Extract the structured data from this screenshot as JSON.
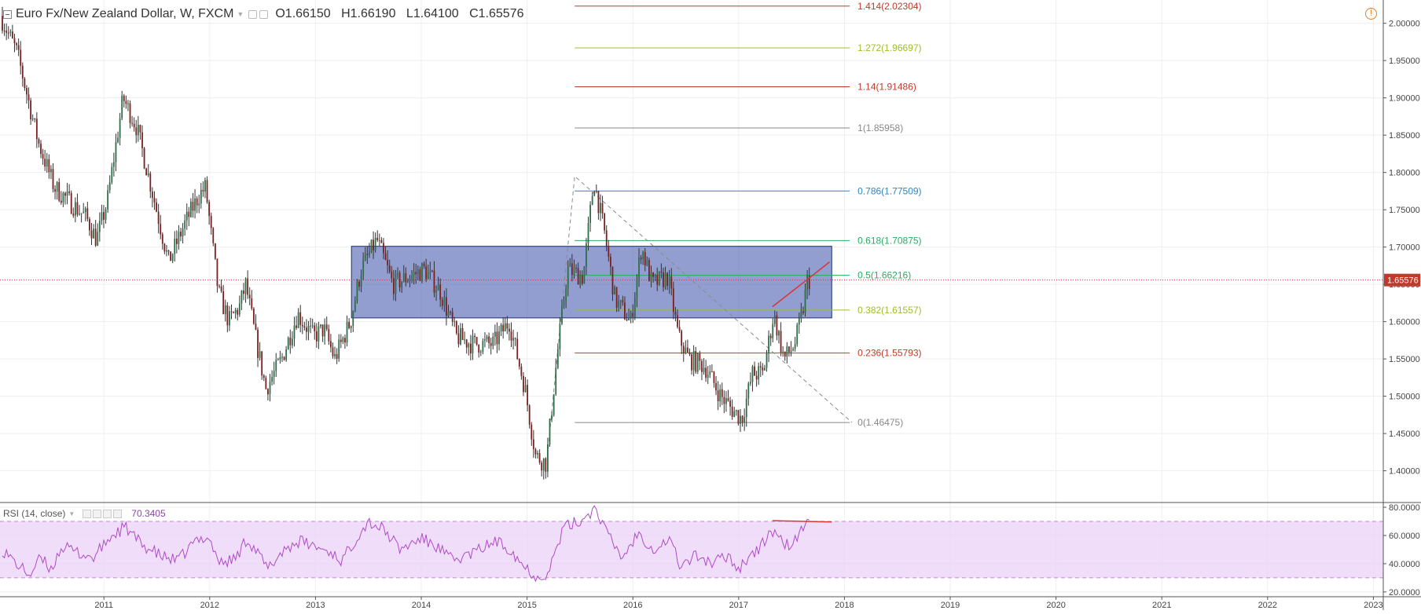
{
  "header": {
    "symbol": "Euro Fx/New Zealand Dollar, W, FXCM",
    "open": "O1.66150",
    "high": "H1.66190",
    "low": "L1.64100",
    "close": "C1.65576"
  },
  "indicator": {
    "label": "RSI (14, close)",
    "value": "70.3405"
  },
  "price_tag": "1.65576",
  "colors": {
    "bull": "#2c6e49",
    "bear": "#7b1f1f",
    "box_fill": "#4a5db0",
    "rsi_line": "#b04bc8",
    "rsi_band": "#ead1f7",
    "price_tag": "#c0392b",
    "trend": "#d93636"
  },
  "chart_data": [
    {
      "type": "candlestick",
      "title": "Euro Fx/New Zealand Dollar, W, FXCM",
      "x_ticks": [
        "2011",
        "2012",
        "2013",
        "2014",
        "2015",
        "2016",
        "2017",
        "2018",
        "2019",
        "2020",
        "2021",
        "2022",
        "2023"
      ],
      "y_ticks": [
        "2.00000",
        "1.95000",
        "1.90000",
        "1.85000",
        "1.80000",
        "1.75000",
        "1.70000",
        "1.65000",
        "1.60000",
        "1.55000",
        "1.50000",
        "1.45000",
        "1.40000"
      ],
      "xlim": [
        2010.04,
        2023.05
      ],
      "ylim": [
        1.3575,
        2.0312
      ],
      "grid": true,
      "price_anchors": [
        [
          2010.04,
          2.01
        ],
        [
          2010.2,
          1.96
        ],
        [
          2010.4,
          1.84
        ],
        [
          2010.55,
          1.78
        ],
        [
          2010.7,
          1.76
        ],
        [
          2010.85,
          1.74
        ],
        [
          2010.95,
          1.71
        ],
        [
          2011.05,
          1.76
        ],
        [
          2011.2,
          1.9
        ],
        [
          2011.33,
          1.86
        ],
        [
          2011.5,
          1.76
        ],
        [
          2011.63,
          1.68
        ],
        [
          2011.78,
          1.73
        ],
        [
          2011.92,
          1.77
        ],
        [
          2011.98,
          1.78
        ],
        [
          2012.03,
          1.72
        ],
        [
          2012.1,
          1.64
        ],
        [
          2012.2,
          1.6
        ],
        [
          2012.3,
          1.62
        ],
        [
          2012.36,
          1.65
        ],
        [
          2012.45,
          1.58
        ],
        [
          2012.55,
          1.51
        ],
        [
          2012.7,
          1.55
        ],
        [
          2012.85,
          1.61
        ],
        [
          2013.0,
          1.58
        ],
        [
          2013.1,
          1.59
        ],
        [
          2013.2,
          1.55
        ],
        [
          2013.35,
          1.6
        ],
        [
          2013.45,
          1.67
        ],
        [
          2013.6,
          1.71
        ],
        [
          2013.75,
          1.65
        ],
        [
          2013.9,
          1.66
        ],
        [
          2014.05,
          1.67
        ],
        [
          2014.2,
          1.64
        ],
        [
          2014.35,
          1.58
        ],
        [
          2014.5,
          1.57
        ],
        [
          2014.7,
          1.57
        ],
        [
          2014.85,
          1.6
        ],
        [
          2015.0,
          1.51
        ],
        [
          2015.1,
          1.42
        ],
        [
          2015.2,
          1.41
        ],
        [
          2015.3,
          1.55
        ],
        [
          2015.4,
          1.67
        ],
        [
          2015.55,
          1.66
        ],
        [
          2015.65,
          1.79
        ],
        [
          2015.75,
          1.72
        ],
        [
          2015.85,
          1.63
        ],
        [
          2016.0,
          1.6
        ],
        [
          2016.1,
          1.7
        ],
        [
          2016.2,
          1.65
        ],
        [
          2016.35,
          1.66
        ],
        [
          2016.45,
          1.58
        ],
        [
          2016.55,
          1.55
        ],
        [
          2016.7,
          1.54
        ],
        [
          2016.85,
          1.5
        ],
        [
          2016.97,
          1.48
        ],
        [
          2017.05,
          1.47
        ],
        [
          2017.15,
          1.53
        ],
        [
          2017.25,
          1.53
        ],
        [
          2017.35,
          1.61
        ],
        [
          2017.45,
          1.55
        ],
        [
          2017.55,
          1.57
        ],
        [
          2017.62,
          1.61
        ],
        [
          2017.67,
          1.6558
        ]
      ]
    },
    {
      "type": "fibonacci_retracement",
      "x_start": 2015.45,
      "x_end": 2018.05,
      "levels": [
        {
          "label": "1.414(2.02304)",
          "value": 2.02304,
          "color": "#c0392b"
        },
        {
          "label": "1.272(1.96697)",
          "value": 1.96697,
          "color": "#9dbe2a"
        },
        {
          "label": "1.14(1.91486)",
          "value": 1.91486,
          "color": "#c0392b"
        },
        {
          "label": "1(1.85958)",
          "value": 1.85958,
          "color": "#888888"
        },
        {
          "label": "0.786(1.77509)",
          "value": 1.77509,
          "color": "#2e86c1"
        },
        {
          "label": "0.618(1.70875)",
          "value": 1.70875,
          "color": "#27ae60"
        },
        {
          "label": "0.5(1.66216)",
          "value": 1.66216,
          "color": "#27ae60"
        },
        {
          "label": "0.382(1.61557)",
          "value": 1.61557,
          "color": "#9dbe2a"
        },
        {
          "label": "0.236(1.55793)",
          "value": 1.55793,
          "color": "#c0392b"
        },
        {
          "label": "0(1.46475)",
          "value": 1.46475,
          "color": "#888888"
        }
      ],
      "trend_dashed": [
        [
          2015.2,
          1.43
        ],
        [
          2015.45,
          1.795
        ],
        [
          2018.07,
          1.465
        ]
      ]
    },
    {
      "type": "rectangle",
      "x": [
        2013.34,
        2017.88
      ],
      "y": [
        1.605,
        1.701
      ]
    },
    {
      "type": "trendline",
      "points": [
        [
          2017.32,
          1.62
        ],
        [
          2017.86,
          1.68
        ]
      ]
    },
    {
      "type": "line",
      "name": "RSI (14, close)",
      "y_ticks": [
        "80.0000",
        "60.0000",
        "40.0000",
        "20.0000"
      ],
      "ylim": [
        16.6,
        82.8
      ],
      "bands": [
        30,
        70
      ],
      "rsi_anchors": [
        [
          2010.04,
          50
        ],
        [
          2010.2,
          38
        ],
        [
          2010.3,
          32
        ],
        [
          2010.4,
          44
        ],
        [
          2010.5,
          36
        ],
        [
          2010.6,
          52
        ],
        [
          2010.75,
          48
        ],
        [
          2010.9,
          44
        ],
        [
          2011.05,
          58
        ],
        [
          2011.2,
          66
        ],
        [
          2011.35,
          54
        ],
        [
          2011.55,
          45
        ],
        [
          2011.7,
          42
        ],
        [
          2011.85,
          55
        ],
        [
          2011.98,
          60
        ],
        [
          2012.1,
          40
        ],
        [
          2012.25,
          44
        ],
        [
          2012.35,
          58
        ],
        [
          2012.45,
          48
        ],
        [
          2012.55,
          36
        ],
        [
          2012.7,
          50
        ],
        [
          2012.85,
          56
        ],
        [
          2013.0,
          52
        ],
        [
          2013.15,
          48
        ],
        [
          2013.25,
          42
        ],
        [
          2013.4,
          60
        ],
        [
          2013.5,
          70
        ],
        [
          2013.65,
          64
        ],
        [
          2013.8,
          50
        ],
        [
          2014.0,
          58
        ],
        [
          2014.15,
          52
        ],
        [
          2014.3,
          42
        ],
        [
          2014.5,
          48
        ],
        [
          2014.7,
          56
        ],
        [
          2014.85,
          50
        ],
        [
          2014.95,
          40
        ],
        [
          2015.1,
          30
        ],
        [
          2015.2,
          34
        ],
        [
          2015.35,
          66
        ],
        [
          2015.5,
          70
        ],
        [
          2015.65,
          80
        ],
        [
          2015.75,
          62
        ],
        [
          2015.9,
          44
        ],
        [
          2016.05,
          62
        ],
        [
          2016.2,
          50
        ],
        [
          2016.35,
          58
        ],
        [
          2016.45,
          38
        ],
        [
          2016.6,
          46
        ],
        [
          2016.75,
          40
        ],
        [
          2016.9,
          46
        ],
        [
          2017.0,
          36
        ],
        [
          2017.1,
          46
        ],
        [
          2017.2,
          50
        ],
        [
          2017.3,
          64
        ],
        [
          2017.4,
          56
        ],
        [
          2017.5,
          52
        ],
        [
          2017.58,
          62
        ],
        [
          2017.67,
          70.34
        ]
      ],
      "divergence_line": [
        [
          2017.32,
          70.5
        ],
        [
          2017.88,
          69.6
        ]
      ]
    }
  ]
}
